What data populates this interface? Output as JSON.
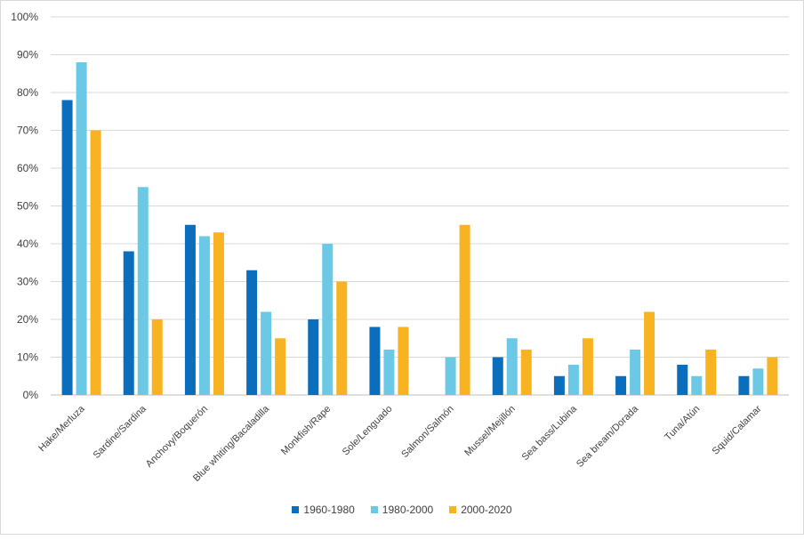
{
  "chart_data": {
    "type": "bar",
    "title": "",
    "xlabel": "",
    "ylabel": "",
    "ylim": [
      0,
      100
    ],
    "y_ticks": [
      "0%",
      "10%",
      "20%",
      "30%",
      "40%",
      "50%",
      "60%",
      "70%",
      "80%",
      "90%",
      "100%"
    ],
    "grid": true,
    "legend_position": "bottom",
    "categories": [
      "Hake/Merluza",
      "Sardine/Sardina",
      "Anchovy/Boquerón",
      "Blue whiting/Bacaladilla",
      "Monkfish/Rape",
      "Sole/Lenguado",
      "Salmon/Salmón",
      "Mussel/Mejillón",
      "Sea bass/Lubina",
      "Sea bream/Dorada",
      "Tuna/Atún",
      "Squid/Calamar"
    ],
    "series": [
      {
        "name": "1960-1980",
        "color": "#0a6ebd",
        "values": [
          78,
          38,
          45,
          33,
          20,
          18,
          0,
          10,
          5,
          5,
          8,
          5
        ]
      },
      {
        "name": "1980-2000",
        "color": "#6cc9e6",
        "values": [
          88,
          55,
          42,
          22,
          40,
          12,
          10,
          15,
          8,
          12,
          5,
          7
        ]
      },
      {
        "name": "2000-2020",
        "color": "#f7b321",
        "values": [
          70,
          20,
          43,
          15,
          30,
          18,
          45,
          12,
          15,
          22,
          12,
          10
        ]
      }
    ]
  }
}
